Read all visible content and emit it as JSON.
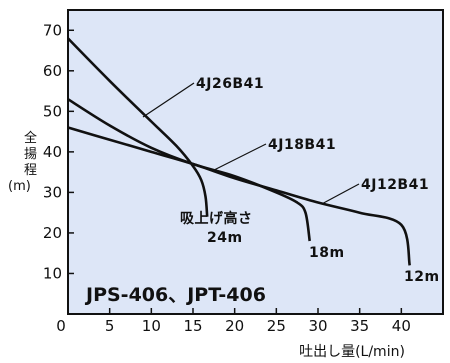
{
  "chart_data": {
    "type": "line",
    "title": "JPS-406、JPT-406",
    "xlabel": "吐出し量(L/min)",
    "ylabel_chars": [
      "全",
      "揚",
      "程"
    ],
    "ylabel_unit": "(m)",
    "xlim": [
      0,
      45
    ],
    "ylim": [
      0,
      75
    ],
    "xticks": [
      "0",
      "5",
      "10",
      "15",
      "20",
      "25",
      "30",
      "35",
      "40"
    ],
    "yticks": [
      "10",
      "20",
      "30",
      "40",
      "50",
      "60",
      "70"
    ],
    "grid": false,
    "background": "#dde6f7",
    "line_color": "#111111",
    "series": [
      {
        "name": "4J26B41",
        "x": [
          0,
          5,
          10,
          13,
          15,
          16,
          16.5,
          16.7
        ],
        "y": [
          68,
          57.5,
          47.5,
          41.5,
          36.5,
          33,
          29,
          24
        ],
        "end_label": "24m"
      },
      {
        "name": "4J18B41",
        "x": [
          0,
          5,
          10,
          15,
          20,
          25,
          27.5,
          28.5,
          29
        ],
        "y": [
          53,
          46.5,
          41,
          37,
          34,
          30,
          27.5,
          25,
          18
        ],
        "end_label": "18m"
      },
      {
        "name": "4J12B41",
        "x": [
          0,
          5,
          10,
          15,
          20,
          25,
          30,
          35,
          40,
          41
        ],
        "y": [
          46,
          43,
          40,
          37,
          33.5,
          30.5,
          27.5,
          25,
          22,
          12
        ],
        "end_label": "12m"
      }
    ],
    "annotations": {
      "suction_lift": "吸上げ高さ"
    }
  }
}
